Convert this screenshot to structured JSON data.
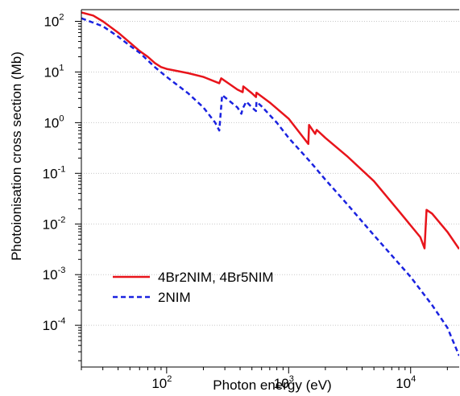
{
  "chart_data": {
    "type": "line",
    "xlabel": "Photon energy (eV)",
    "ylabel": "Photoionisation cross section (Mb)",
    "xscale": "log",
    "yscale": "log",
    "xlim": [
      20,
      25000
    ],
    "ylim": [
      1.5e-05,
      170
    ],
    "grid": {
      "x": false,
      "y": true
    },
    "legend_position": "bottom-left",
    "x_tick_labels": [
      {
        "value": 100,
        "base": "10",
        "exp": "2"
      },
      {
        "value": 1000,
        "base": "10",
        "exp": "3"
      },
      {
        "value": 10000,
        "base": "10",
        "exp": "4"
      }
    ],
    "y_tick_labels": [
      {
        "value": 100,
        "base": "10",
        "exp": "2"
      },
      {
        "value": 10,
        "base": "10",
        "exp": "1"
      },
      {
        "value": 1,
        "base": "10",
        "exp": "0"
      },
      {
        "value": 0.1,
        "base": "10",
        "exp": "-1"
      },
      {
        "value": 0.01,
        "base": "10",
        "exp": "-2"
      },
      {
        "value": 0.001,
        "base": "10",
        "exp": "-3"
      },
      {
        "value": 0.0001,
        "base": "10",
        "exp": "-4"
      }
    ],
    "series": [
      {
        "name": "4Br2NIM, 4Br5NIM",
        "color": "#e8141b",
        "style": "solid",
        "points": [
          [
            20,
            150
          ],
          [
            25,
            130
          ],
          [
            30,
            100
          ],
          [
            40,
            60
          ],
          [
            50,
            38
          ],
          [
            60,
            26
          ],
          [
            70,
            20
          ],
          [
            80,
            15
          ],
          [
            90,
            12.5
          ],
          [
            100,
            11.5
          ],
          [
            150,
            9.5
          ],
          [
            200,
            8
          ],
          [
            270,
            6
          ],
          [
            280,
            7.5
          ],
          [
            320,
            6
          ],
          [
            380,
            4.5
          ],
          [
            420,
            4
          ],
          [
            425,
            5.2
          ],
          [
            500,
            3.8
          ],
          [
            540,
            3.2
          ],
          [
            545,
            3.9
          ],
          [
            700,
            2.5
          ],
          [
            1000,
            1.2
          ],
          [
            1450,
            0.38
          ],
          [
            1470,
            0.9
          ],
          [
            1650,
            0.6
          ],
          [
            1700,
            0.72
          ],
          [
            2000,
            0.5
          ],
          [
            3000,
            0.22
          ],
          [
            5000,
            0.07
          ],
          [
            8000,
            0.018
          ],
          [
            12000,
            0.0055
          ],
          [
            13000,
            0.0033
          ],
          [
            13500,
            0.019
          ],
          [
            15000,
            0.016
          ],
          [
            20000,
            0.007
          ],
          [
            25000,
            0.0032
          ]
        ]
      },
      {
        "name": "2NIM",
        "color": "#1a22e0",
        "style": "dashed",
        "points": [
          [
            20,
            115
          ],
          [
            30,
            80
          ],
          [
            40,
            50
          ],
          [
            50,
            33
          ],
          [
            60,
            24
          ],
          [
            70,
            17
          ],
          [
            80,
            12.5
          ],
          [
            100,
            8
          ],
          [
            150,
            3.8
          ],
          [
            200,
            2
          ],
          [
            250,
            1
          ],
          [
            270,
            0.7
          ],
          [
            285,
            3.5
          ],
          [
            320,
            2.8
          ],
          [
            380,
            2
          ],
          [
            410,
            1.5
          ],
          [
            420,
            1.9
          ],
          [
            450,
            2.6
          ],
          [
            500,
            2
          ],
          [
            540,
            1.7
          ],
          [
            545,
            2.6
          ],
          [
            600,
            2.1
          ],
          [
            800,
            1
          ],
          [
            1000,
            0.5
          ],
          [
            1500,
            0.17
          ],
          [
            2000,
            0.075
          ],
          [
            3000,
            0.025
          ],
          [
            5000,
            0.006
          ],
          [
            10000,
            0.0009
          ],
          [
            15000,
            0.00025
          ],
          [
            20000,
            9e-05
          ],
          [
            25000,
            2.5e-05
          ]
        ]
      }
    ]
  }
}
